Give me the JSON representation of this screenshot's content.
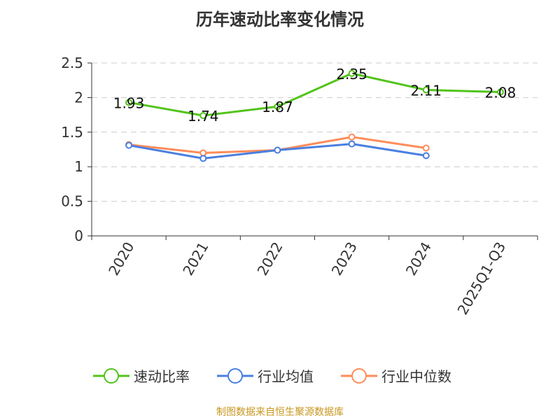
{
  "chart_data": {
    "type": "line",
    "title": "历年速动比率变化情况",
    "categories": [
      "2020",
      "2021",
      "2022",
      "2023",
      "2024",
      "2025Q1-Q3"
    ],
    "ylim": [
      0,
      2.5
    ],
    "yticks": [
      "0",
      "0.5",
      "1",
      "1.5",
      "2",
      "2.5"
    ],
    "grid": true,
    "legend_position": "bottom",
    "series": [
      {
        "name": "速动比率",
        "color": "#52c41a",
        "values": [
          1.93,
          1.74,
          1.87,
          2.35,
          2.11,
          2.08
        ],
        "labels": [
          "1.93",
          "1.74",
          "1.87",
          "2.35",
          "2.11",
          "2.08"
        ]
      },
      {
        "name": "行业均值",
        "color": "#4a7fe0",
        "values": [
          1.31,
          1.12,
          1.24,
          1.33,
          1.16,
          null
        ]
      },
      {
        "name": "行业中位数",
        "color": "#ff8c5a",
        "values": [
          1.32,
          1.2,
          1.24,
          1.43,
          1.27,
          null
        ]
      }
    ]
  },
  "source": "制图数据来自恒生聚源数据库"
}
